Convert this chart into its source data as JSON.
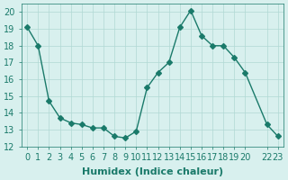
{
  "x": [
    0,
    1,
    2,
    3,
    4,
    5,
    6,
    7,
    8,
    9,
    10,
    11,
    12,
    13,
    14,
    15,
    16,
    17,
    18,
    19,
    20,
    22,
    23
  ],
  "y": [
    19.1,
    18.0,
    14.7,
    13.7,
    13.4,
    13.3,
    13.1,
    13.1,
    12.6,
    12.5,
    12.9,
    15.5,
    16.4,
    17.0,
    19.1,
    20.1,
    18.6,
    18.0,
    18.0,
    17.3,
    16.4,
    13.3,
    12.6
  ],
  "line_color": "#1a7a6a",
  "marker": "D",
  "marker_size": 3,
  "bg_color": "#d8f0ee",
  "grid_color": "#b0d8d4",
  "xlabel": "Humidex (Indice chaleur)",
  "ylabel": "",
  "xlim": [
    -0.5,
    23.5
  ],
  "ylim": [
    12,
    20.5
  ],
  "xticks": [
    0,
    1,
    2,
    3,
    4,
    5,
    6,
    7,
    8,
    9,
    10,
    11,
    12,
    13,
    14,
    15,
    16,
    17,
    18,
    19,
    20,
    22,
    23
  ],
  "xtick_labels": [
    "0",
    "1",
    "2",
    "3",
    "4",
    "5",
    "6",
    "7",
    "8",
    "9",
    "10",
    "11",
    "12",
    "13",
    "14",
    "15",
    "16",
    "17",
    "18",
    "19",
    "20",
    "22",
    "23"
  ],
  "yticks": [
    12,
    13,
    14,
    15,
    16,
    17,
    18,
    19,
    20
  ],
  "tick_color": "#1a7a6a",
  "label_fontsize": 7,
  "xlabel_fontsize": 8
}
